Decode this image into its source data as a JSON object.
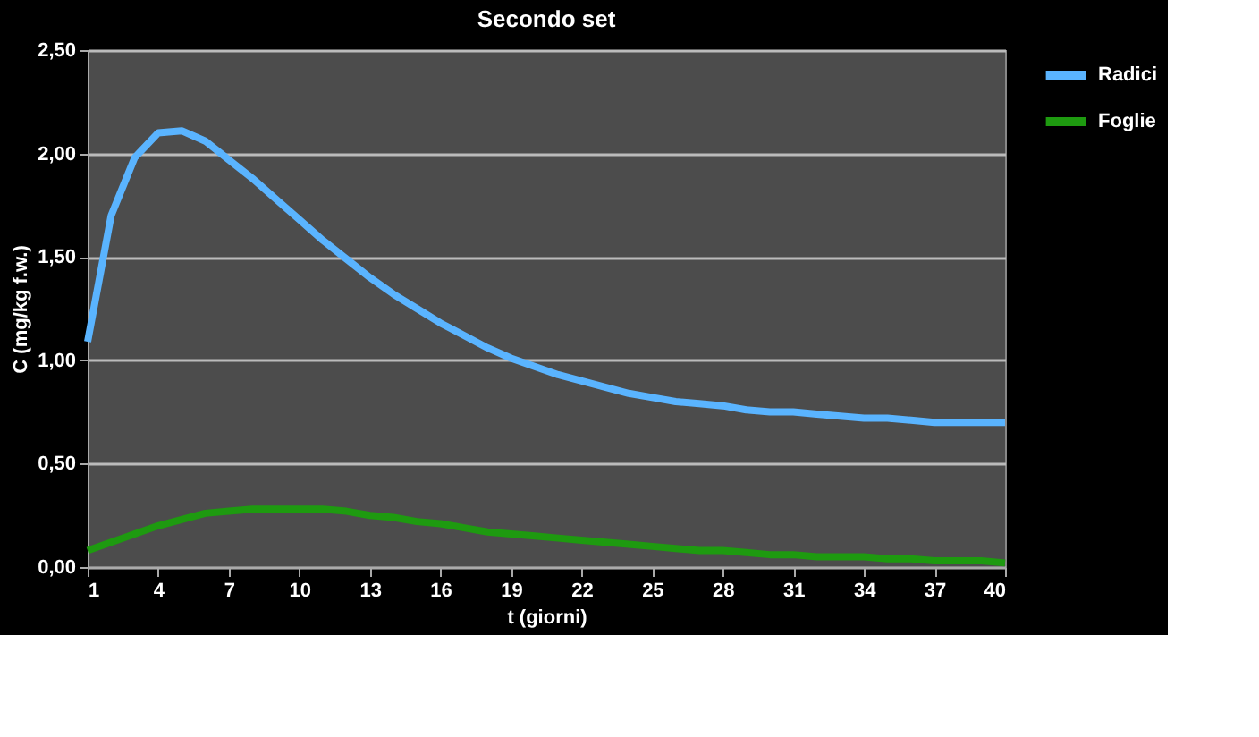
{
  "chart_data": {
    "type": "line",
    "title": "Secondo set",
    "xlabel": "t (giorni)",
    "ylabel": "C (mg/kg f.w.)",
    "x": [
      1,
      2,
      3,
      4,
      5,
      6,
      7,
      8,
      9,
      10,
      11,
      12,
      13,
      14,
      15,
      16,
      17,
      18,
      19,
      20,
      21,
      22,
      23,
      24,
      25,
      26,
      27,
      28,
      29,
      30,
      31,
      32,
      33,
      34,
      35,
      36,
      37,
      38,
      39,
      40
    ],
    "series": [
      {
        "name": "Radici",
        "color": "#5ab4ff",
        "values": [
          1.09,
          1.7,
          1.98,
          2.1,
          2.11,
          2.06,
          1.97,
          1.88,
          1.78,
          1.68,
          1.58,
          1.49,
          1.4,
          1.32,
          1.25,
          1.18,
          1.12,
          1.06,
          1.01,
          0.97,
          0.93,
          0.9,
          0.87,
          0.84,
          0.82,
          0.8,
          0.79,
          0.78,
          0.76,
          0.75,
          0.75,
          0.74,
          0.73,
          0.72,
          0.72,
          0.71,
          0.7,
          0.7,
          0.7,
          0.7
        ]
      },
      {
        "name": "Foglie",
        "color": "#1e9a10",
        "values": [
          0.08,
          0.12,
          0.16,
          0.2,
          0.23,
          0.26,
          0.27,
          0.28,
          0.28,
          0.28,
          0.28,
          0.27,
          0.25,
          0.24,
          0.22,
          0.21,
          0.19,
          0.17,
          0.16,
          0.15,
          0.14,
          0.13,
          0.12,
          0.11,
          0.1,
          0.09,
          0.08,
          0.08,
          0.07,
          0.06,
          0.06,
          0.05,
          0.05,
          0.05,
          0.04,
          0.04,
          0.03,
          0.03,
          0.03,
          0.02
        ]
      }
    ],
    "xlim": [
      1,
      40
    ],
    "xticks": [
      1,
      4,
      7,
      10,
      13,
      16,
      19,
      22,
      25,
      28,
      31,
      34,
      37,
      40
    ],
    "ylim": [
      0,
      2.5
    ],
    "yticks": [
      {
        "value": 0,
        "label": "0,00"
      },
      {
        "value": 0.5,
        "label": "0,50"
      },
      {
        "value": 1,
        "label": "1,00"
      },
      {
        "value": 1.5,
        "label": "1,50"
      },
      {
        "value": 2,
        "label": "2,00"
      },
      {
        "value": 2.5,
        "label": "2,50"
      }
    ],
    "grid": "y",
    "legend": "right",
    "marker": "none",
    "line_style": "solid"
  }
}
